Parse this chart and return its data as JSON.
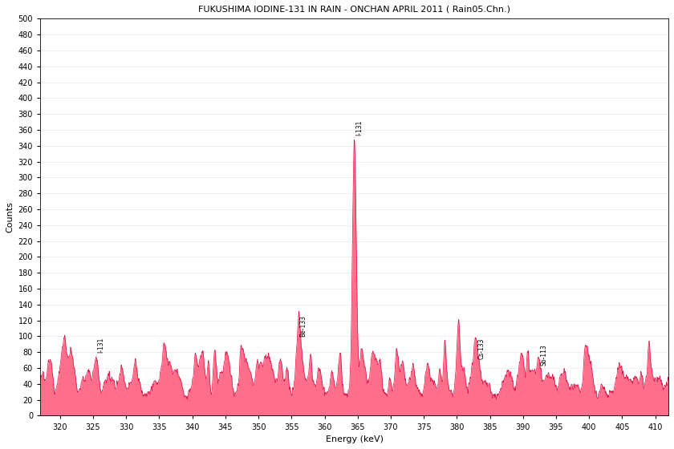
{
  "title": "FUKUSHIMA IODINE-131 IN RAIN - ONCHAN APRIL 2011 ( Rain05.Chn.)",
  "xlabel": "Energy (keV)",
  "ylabel": "Counts",
  "xlim": [
    317,
    412
  ],
  "ylim": [
    0,
    500
  ],
  "yticks": [
    0,
    20,
    40,
    60,
    80,
    100,
    120,
    140,
    160,
    180,
    200,
    220,
    240,
    260,
    280,
    300,
    320,
    340,
    360,
    380,
    400,
    420,
    440,
    460,
    480,
    500
  ],
  "xticks": [
    320,
    325,
    330,
    335,
    340,
    345,
    350,
    355,
    360,
    365,
    370,
    375,
    380,
    385,
    390,
    395,
    400,
    405,
    410
  ],
  "annotations": [
    {
      "label": "I-131",
      "peak_x": 364.5,
      "peak_y": 350
    },
    {
      "label": "Be-133",
      "peak_x": 356.0,
      "peak_y": 96
    },
    {
      "label": "Cs-133",
      "peak_x": 383.0,
      "peak_y": 68
    },
    {
      "label": "I-131",
      "peak_x": 325.5,
      "peak_y": 76
    },
    {
      "label": "Sb-113",
      "peak_x": 392.5,
      "peak_y": 60
    }
  ],
  "noise_base": 25,
  "fill_color": "#FF5577",
  "fill_alpha": 0.85,
  "line_color": "#DD1144",
  "background_color": "#FFFFFF",
  "title_fontsize": 8,
  "axis_fontsize": 8,
  "tick_fontsize": 7,
  "seed": 17
}
